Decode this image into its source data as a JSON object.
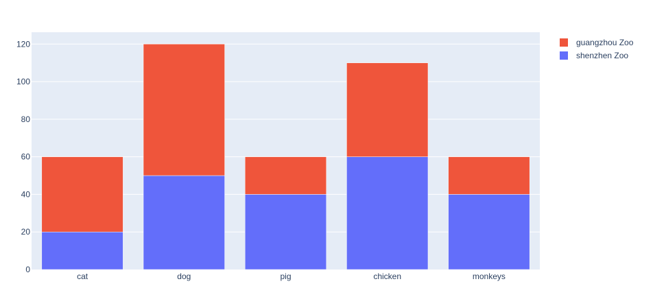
{
  "chart_data": {
    "type": "bar",
    "barmode": "stack",
    "categories": [
      "cat",
      "dog",
      "pig",
      "chicken",
      "monkeys"
    ],
    "series": [
      {
        "name": "shenzhen Zoo",
        "values": [
          20,
          50,
          40,
          60,
          40
        ],
        "color": "#636efa"
      },
      {
        "name": "guangzhou Zoo",
        "values": [
          40,
          70,
          20,
          50,
          20
        ],
        "color": "#ef553b"
      }
    ],
    "legend_order": [
      "guangzhou Zoo",
      "shenzhen Zoo"
    ],
    "y_ticks": [
      0,
      20,
      40,
      60,
      80,
      100,
      120
    ],
    "ylim": [
      0,
      126.3
    ],
    "title": "",
    "xlabel": "",
    "ylabel": "",
    "grid": true,
    "legend_position": "top-right",
    "plot_background": "#e5ecf6"
  }
}
